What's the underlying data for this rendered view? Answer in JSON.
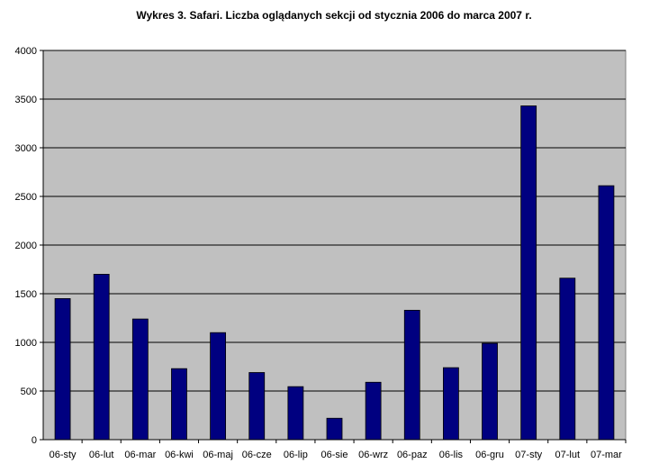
{
  "title": "Wykres 3. Safari. Liczba oglądanych sekcji od stycznia 2006 do marca 2007 r.",
  "colors": {
    "plot_background": "#c0c0c0",
    "bar": "#000080",
    "gridline": "#000000"
  },
  "chart_data": {
    "type": "bar",
    "title": "Wykres 3. Safari. Liczba oglądanych sekcji od stycznia 2006 do marca 2007 r.",
    "categories": [
      "06-sty",
      "06-lut",
      "06-mar",
      "06-kwi",
      "06-maj",
      "06-cze",
      "06-lip",
      "06-sie",
      "06-wrz",
      "06-paz",
      "06-lis",
      "06-gru",
      "07-sty",
      "07-lut",
      "07-mar"
    ],
    "values": [
      1450,
      1700,
      1240,
      730,
      1100,
      690,
      545,
      220,
      590,
      1330,
      740,
      990,
      3430,
      1660,
      2610
    ],
    "ylim": [
      0,
      4000
    ],
    "yticks": [
      "0",
      "500",
      "1000",
      "1500",
      "2000",
      "2500",
      "3000",
      "3500",
      "4000"
    ],
    "xlabel": "",
    "ylabel": "",
    "grid": true,
    "legend": "none"
  }
}
